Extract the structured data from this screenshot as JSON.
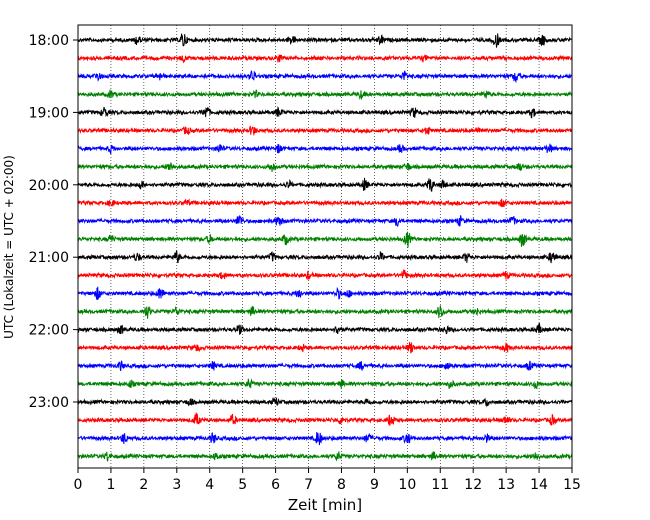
{
  "chart_data": {
    "type": "line",
    "title": "",
    "xlabel": "Zeit  [min]",
    "ylabel": "UTC (Lokalzeit = UTC + 02:00)",
    "xlim": [
      0,
      15
    ],
    "xticks": [
      0,
      1,
      2,
      3,
      4,
      5,
      6,
      7,
      8,
      9,
      10,
      11,
      12,
      13,
      14,
      15
    ],
    "ytick_labels": [
      "18:00",
      "19:00",
      "20:00",
      "21:00",
      "22:00",
      "23:00"
    ],
    "trace_colors": [
      "#000000",
      "#ff0000",
      "#0000ff",
      "#008000"
    ],
    "grid": {
      "x": true,
      "y": false,
      "style": "dotted"
    },
    "traces": [
      {
        "start": "18:00",
        "color": "#000000",
        "events": [
          [
            1.8,
            0.5
          ],
          [
            3.2,
            0.9
          ],
          [
            6.5,
            0.45
          ],
          [
            9.2,
            0.5
          ],
          [
            12.7,
            0.8
          ],
          [
            14.1,
            0.6
          ]
        ]
      },
      {
        "start": "18:15",
        "color": "#ff0000",
        "events": [
          [
            3.2,
            0.35
          ],
          [
            6.1,
            0.4
          ],
          [
            10.5,
            0.3
          ]
        ]
      },
      {
        "start": "18:30",
        "color": "#0000ff",
        "events": [
          [
            0.6,
            0.5
          ],
          [
            2.5,
            0.4
          ],
          [
            5.3,
            0.6
          ],
          [
            9.9,
            0.5
          ],
          [
            13.3,
            0.6
          ]
        ]
      },
      {
        "start": "18:45",
        "color": "#008000",
        "events": [
          [
            1.0,
            0.4
          ],
          [
            5.4,
            0.3
          ],
          [
            8.6,
            0.4
          ],
          [
            12.4,
            0.35
          ]
        ]
      },
      {
        "start": "19:00",
        "color": "#000000",
        "events": [
          [
            0.8,
            0.6
          ],
          [
            3.9,
            0.7
          ],
          [
            6.1,
            0.5
          ],
          [
            10.2,
            0.55
          ],
          [
            13.8,
            0.5
          ]
        ]
      },
      {
        "start": "19:15",
        "color": "#ff0000",
        "events": [
          [
            3.3,
            0.45
          ],
          [
            5.3,
            0.55
          ],
          [
            10.6,
            0.4
          ],
          [
            12.2,
            0.35
          ]
        ]
      },
      {
        "start": "19:30",
        "color": "#0000ff",
        "events": [
          [
            1.0,
            0.4
          ],
          [
            4.3,
            0.5
          ],
          [
            6.1,
            0.45
          ],
          [
            9.8,
            0.4
          ],
          [
            14.3,
            0.5
          ]
        ]
      },
      {
        "start": "19:45",
        "color": "#008000",
        "events": [
          [
            2.8,
            0.5
          ],
          [
            5.9,
            0.45
          ],
          [
            10.0,
            0.4
          ],
          [
            13.4,
            0.45
          ]
        ]
      },
      {
        "start": "20:00",
        "color": "#000000",
        "events": [
          [
            1.9,
            0.4
          ],
          [
            6.4,
            0.35
          ],
          [
            8.7,
            0.6
          ],
          [
            10.7,
            0.8
          ],
          [
            11.1,
            0.5
          ]
        ]
      },
      {
        "start": "20:15",
        "color": "#ff0000",
        "events": [
          [
            1.0,
            0.35
          ],
          [
            3.3,
            0.3
          ],
          [
            12.9,
            0.4
          ]
        ]
      },
      {
        "start": "20:30",
        "color": "#0000ff",
        "events": [
          [
            4.9,
            0.7
          ],
          [
            6.1,
            0.7
          ],
          [
            9.7,
            0.5
          ],
          [
            11.6,
            0.5
          ],
          [
            13.2,
            0.45
          ]
        ]
      },
      {
        "start": "20:45",
        "color": "#008000",
        "events": [
          [
            1.0,
            0.45
          ],
          [
            4.0,
            0.4
          ],
          [
            6.3,
            0.55
          ],
          [
            10.0,
            0.95
          ],
          [
            13.5,
            0.85
          ]
        ]
      },
      {
        "start": "21:00",
        "color": "#000000",
        "events": [
          [
            1.8,
            0.45
          ],
          [
            3.0,
            0.65
          ],
          [
            5.9,
            0.5
          ],
          [
            9.2,
            0.45
          ],
          [
            11.8,
            0.5
          ],
          [
            14.4,
            0.7
          ]
        ]
      },
      {
        "start": "21:15",
        "color": "#ff0000",
        "events": [
          [
            4.4,
            0.4
          ],
          [
            7.0,
            0.35
          ],
          [
            9.9,
            0.5
          ],
          [
            13.0,
            0.4
          ]
        ]
      },
      {
        "start": "21:30",
        "color": "#0000ff",
        "events": [
          [
            0.6,
            0.65
          ],
          [
            2.5,
            0.7
          ],
          [
            6.7,
            0.5
          ],
          [
            7.9,
            0.5
          ],
          [
            8.2,
            0.4
          ]
        ]
      },
      {
        "start": "21:45",
        "color": "#008000",
        "events": [
          [
            2.1,
            0.7
          ],
          [
            3.0,
            0.4
          ],
          [
            5.3,
            0.45
          ],
          [
            11.0,
            0.8
          ],
          [
            12.1,
            0.35
          ]
        ]
      },
      {
        "start": "22:00",
        "color": "#000000",
        "events": [
          [
            1.3,
            0.45
          ],
          [
            4.9,
            0.5
          ],
          [
            7.9,
            0.55
          ],
          [
            11.2,
            0.4
          ],
          [
            14.0,
            0.5
          ]
        ]
      },
      {
        "start": "22:15",
        "color": "#ff0000",
        "events": [
          [
            3.6,
            0.35
          ],
          [
            6.8,
            0.35
          ],
          [
            10.1,
            0.6
          ],
          [
            13.0,
            0.45
          ]
        ]
      },
      {
        "start": "22:30",
        "color": "#0000ff",
        "events": [
          [
            1.3,
            0.45
          ],
          [
            4.1,
            0.4
          ],
          [
            8.6,
            0.4
          ],
          [
            11.2,
            0.6
          ],
          [
            13.7,
            0.45
          ]
        ]
      },
      {
        "start": "22:45",
        "color": "#008000",
        "events": [
          [
            1.6,
            0.35
          ],
          [
            5.2,
            0.5
          ],
          [
            8.0,
            0.35
          ],
          [
            11.3,
            0.45
          ],
          [
            13.9,
            0.4
          ]
        ]
      },
      {
        "start": "23:00",
        "color": "#000000",
        "events": [
          [
            3.4,
            0.4
          ],
          [
            6.0,
            0.4
          ],
          [
            8.8,
            0.35
          ],
          [
            12.4,
            0.35
          ]
        ]
      },
      {
        "start": "23:15",
        "color": "#ff0000",
        "events": [
          [
            3.6,
            0.7
          ],
          [
            4.7,
            0.55
          ],
          [
            8.0,
            0.45
          ],
          [
            9.5,
            0.7
          ],
          [
            13.0,
            0.45
          ],
          [
            14.4,
            0.5
          ]
        ]
      },
      {
        "start": "23:30",
        "color": "#0000ff",
        "events": [
          [
            1.4,
            0.55
          ],
          [
            4.1,
            0.55
          ],
          [
            7.3,
            0.85
          ],
          [
            8.8,
            0.5
          ],
          [
            10.0,
            0.7
          ],
          [
            12.4,
            0.4
          ]
        ]
      },
      {
        "start": "23:45",
        "color": "#008000",
        "events": [
          [
            0.9,
            0.5
          ],
          [
            4.2,
            0.4
          ],
          [
            7.9,
            0.45
          ],
          [
            10.8,
            0.4
          ],
          [
            13.9,
            0.4
          ]
        ]
      }
    ]
  }
}
